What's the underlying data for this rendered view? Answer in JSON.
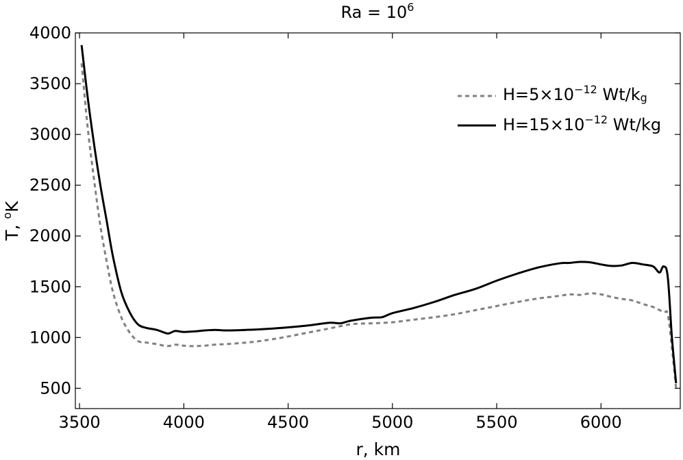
{
  "chart_data": {
    "type": "line",
    "title": "Ra = 10",
    "title_superscript": "6",
    "xlabel": "r, km",
    "ylabel": "T,",
    "ylabel_superscript": "o",
    "ylabel_suffix": "K",
    "xlim": [
      3480,
      6380
    ],
    "ylim": [
      300,
      4000
    ],
    "xticks": [
      3500,
      4000,
      4500,
      5000,
      5500,
      6000
    ],
    "yticks": [
      500,
      1000,
      1500,
      2000,
      2500,
      3000,
      3500,
      4000
    ],
    "xtick_labels": [
      "3500",
      "4000",
      "4500",
      "5000",
      "5500",
      "6000"
    ],
    "ytick_labels": [
      "500",
      "1000",
      "1500",
      "2000",
      "2500",
      "3000",
      "3500",
      "4000"
    ],
    "grid": false,
    "legend_position": "top-right",
    "series": [
      {
        "name_parts": [
          "H=5×10",
          "−12",
          " Wt/k",
          "g"
        ],
        "style": "dashed",
        "color": "#808080",
        "x": [
          3510,
          3540,
          3570,
          3600,
          3630,
          3660,
          3700,
          3740,
          3780,
          3820,
          3870,
          3920,
          3960,
          4000,
          4050,
          4100,
          4150,
          4200,
          4300,
          4400,
          4500,
          4600,
          4700,
          4800,
          4900,
          5000,
          5100,
          5200,
          5300,
          5400,
          5500,
          5600,
          5700,
          5800,
          5850,
          5900,
          5950,
          6000,
          6050,
          6100,
          6150,
          6200,
          6250,
          6300,
          6320,
          6340,
          6360
        ],
        "y": [
          3700,
          3050,
          2550,
          2100,
          1750,
          1450,
          1200,
          1050,
          965,
          950,
          935,
          915,
          930,
          920,
          915,
          920,
          930,
          935,
          950,
          975,
          1010,
          1050,
          1090,
          1130,
          1140,
          1150,
          1175,
          1200,
          1230,
          1270,
          1310,
          1350,
          1385,
          1410,
          1425,
          1420,
          1435,
          1425,
          1400,
          1380,
          1365,
          1330,
          1300,
          1250,
          1230,
          900,
          500
        ]
      },
      {
        "name_parts": [
          "H=15×10",
          "−12",
          " Wt/kg",
          ""
        ],
        "style": "solid",
        "color": "#000000",
        "x": [
          3510,
          3540,
          3570,
          3600,
          3630,
          3660,
          3700,
          3740,
          3780,
          3820,
          3870,
          3920,
          3940,
          3960,
          4000,
          4050,
          4100,
          4150,
          4200,
          4300,
          4400,
          4500,
          4600,
          4700,
          4750,
          4800,
          4900,
          4950,
          5000,
          5100,
          5200,
          5300,
          5400,
          5500,
          5600,
          5700,
          5800,
          5850,
          5900,
          5950,
          6000,
          6050,
          6100,
          6150,
          6200,
          6250,
          6280,
          6300,
          6320,
          6340,
          6360
        ],
        "y": [
          3880,
          3350,
          2900,
          2500,
          2150,
          1800,
          1450,
          1250,
          1130,
          1095,
          1075,
          1040,
          1050,
          1065,
          1055,
          1060,
          1070,
          1075,
          1070,
          1075,
          1085,
          1100,
          1120,
          1145,
          1140,
          1165,
          1195,
          1200,
          1240,
          1290,
          1350,
          1420,
          1480,
          1560,
          1630,
          1690,
          1730,
          1735,
          1745,
          1740,
          1720,
          1705,
          1710,
          1735,
          1720,
          1700,
          1640,
          1700,
          1600,
          1000,
          550
        ]
      }
    ]
  }
}
